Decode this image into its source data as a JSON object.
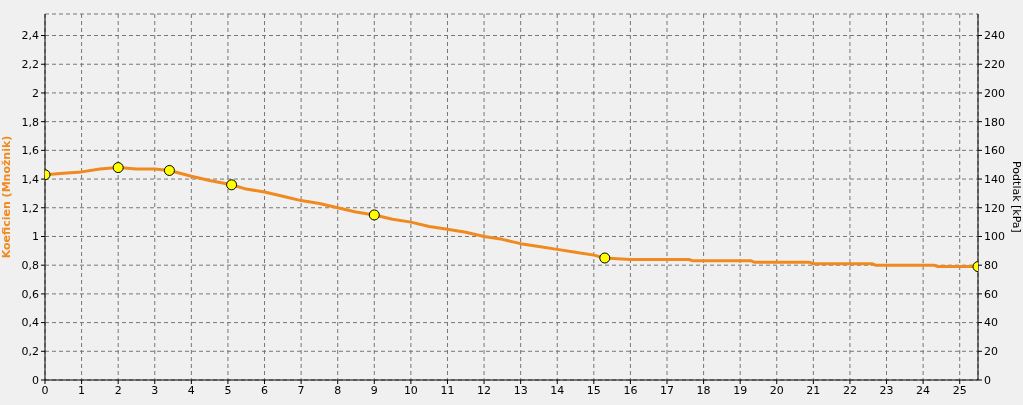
{
  "chart_data": {
    "type": "line",
    "ylabel": "Koeficien (Množnik)",
    "y2label": "Podtlak [kPa]",
    "xlim": [
      0,
      25.5
    ],
    "xticks": [
      0,
      1,
      2,
      3,
      4,
      5,
      6,
      7,
      8,
      9,
      10,
      11,
      12,
      13,
      14,
      15,
      16,
      17,
      18,
      19,
      20,
      21,
      22,
      23,
      24,
      25
    ],
    "ylim": [
      0,
      2.55
    ],
    "yticks": [
      0,
      {
        "value": 0.2,
        "label": "0,2"
      },
      {
        "value": 0.4,
        "label": "0,4"
      },
      {
        "value": 0.6,
        "label": "0,6"
      },
      {
        "value": 0.8,
        "label": "0,8"
      },
      1,
      {
        "value": 1.2,
        "label": "1,2"
      },
      {
        "value": 1.4,
        "label": "1,4"
      },
      {
        "value": 1.6,
        "label": "1,6"
      },
      {
        "value": 1.8,
        "label": "1,8"
      },
      2,
      {
        "value": 2.2,
        "label": "2,2"
      },
      {
        "value": 2.4,
        "label": "2,4"
      }
    ],
    "y2lim": [
      0,
      255
    ],
    "y2ticks": [
      0,
      20,
      40,
      60,
      80,
      100,
      120,
      140,
      160,
      180,
      200,
      220,
      240
    ],
    "grid": true,
    "series": [
      {
        "color": "#f08a1e",
        "marker": "none",
        "line_style": "solid",
        "x": [
          0,
          0.5,
          1,
          1.5,
          2,
          2.5,
          3,
          3.4,
          4,
          4.5,
          5.1,
          5.5,
          6,
          6.5,
          7,
          7.5,
          8,
          8.5,
          9,
          9.5,
          10,
          10.5,
          11,
          11.5,
          12,
          12.5,
          13,
          13.5,
          14,
          14.5,
          15,
          15.3,
          16,
          17.6,
          17.7,
          19.3,
          19.4,
          20.9,
          21,
          22.6,
          22.7,
          24.3,
          24.4,
          25.5
        ],
        "values": [
          1.43,
          1.44,
          1.45,
          1.47,
          1.48,
          1.47,
          1.47,
          1.46,
          1.42,
          1.39,
          1.36,
          1.33,
          1.31,
          1.28,
          1.25,
          1.23,
          1.2,
          1.17,
          1.15,
          1.12,
          1.1,
          1.07,
          1.05,
          1.03,
          1,
          0.98,
          0.95,
          0.93,
          0.91,
          0.89,
          0.87,
          0.85,
          0.84,
          0.84,
          0.83,
          0.83,
          0.82,
          0.82,
          0.81,
          0.81,
          0.8,
          0.8,
          0.79,
          0.79
        ]
      },
      {
        "type": "scatter",
        "color": "#ffff00",
        "marker": "circle",
        "x": [
          0,
          2,
          3.4,
          5.1,
          9,
          15.3,
          25.5
        ],
        "values": [
          1.43,
          1.48,
          1.46,
          1.36,
          1.15,
          0.85,
          0.79
        ]
      }
    ]
  }
}
